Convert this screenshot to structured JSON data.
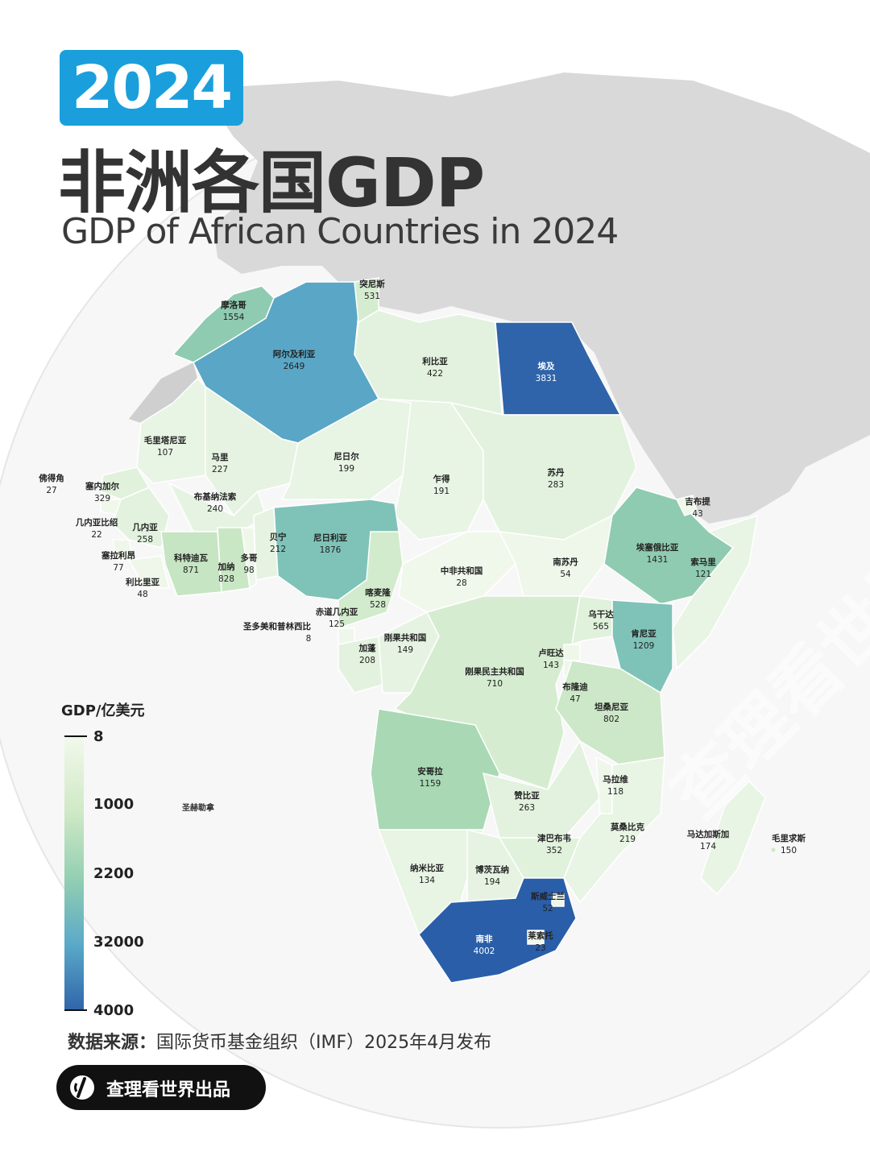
{
  "header": {
    "year": "2024",
    "title_cn": "非洲各国GDP",
    "title_en": "GDP of African Countries in 2024"
  },
  "legend": {
    "title": "GDP/亿美元",
    "ticks": [
      "8",
      "1000",
      "2200",
      "32000",
      "4000"
    ]
  },
  "colors": {
    "year_box": "#1a9fdc",
    "scale_low": "#f2f9ec",
    "scale_mid_low": "#cfe9c6",
    "scale_mid": "#93cfb2",
    "scale_mid_high": "#5aa9c8",
    "scale_high": "#2f64aa"
  },
  "countries": [
    {
      "name": "摩洛哥",
      "value": "1554"
    },
    {
      "name": "阿尔及利亚",
      "value": "2649"
    },
    {
      "name": "突尼斯",
      "value": "531"
    },
    {
      "name": "利比亚",
      "value": "422"
    },
    {
      "name": "埃及",
      "value": "3831"
    },
    {
      "name": "毛里塔尼亚",
      "value": "107"
    },
    {
      "name": "马里",
      "value": "227"
    },
    {
      "name": "尼日尔",
      "value": "199"
    },
    {
      "name": "乍得",
      "value": "191"
    },
    {
      "name": "苏丹",
      "value": "283"
    },
    {
      "name": "佛得角",
      "value": "27"
    },
    {
      "name": "塞内加尔",
      "value": "329"
    },
    {
      "name": "布基纳法索",
      "value": "240"
    },
    {
      "name": "几内亚比绍",
      "value": "22"
    },
    {
      "name": "几内亚",
      "value": "258"
    },
    {
      "name": "塞拉利昂",
      "value": "77"
    },
    {
      "name": "利比里亚",
      "value": "48"
    },
    {
      "name": "科特迪瓦",
      "value": "871"
    },
    {
      "name": "加纳",
      "value": "828"
    },
    {
      "name": "多哥",
      "value": "98"
    },
    {
      "name": "贝宁",
      "value": "212"
    },
    {
      "name": "尼日利亚",
      "value": "1876"
    },
    {
      "name": "喀麦隆",
      "value": "528"
    },
    {
      "name": "中非共和国",
      "value": "28"
    },
    {
      "name": "南苏丹",
      "value": "54"
    },
    {
      "name": "埃塞俄比亚",
      "value": "1431"
    },
    {
      "name": "吉布提",
      "value": "43"
    },
    {
      "name": "索马里",
      "value": "121"
    },
    {
      "name": "赤道几内亚",
      "value": "125"
    },
    {
      "name": "圣多美和普林西比",
      "value": "8"
    },
    {
      "name": "加蓬",
      "value": "208"
    },
    {
      "name": "刚果共和国",
      "value": "149"
    },
    {
      "name": "乌干达",
      "value": "565"
    },
    {
      "name": "肯尼亚",
      "value": "1209"
    },
    {
      "name": "卢旺达",
      "value": "143"
    },
    {
      "name": "布隆迪",
      "value": "47"
    },
    {
      "name": "刚果民主共和国",
      "value": "710"
    },
    {
      "name": "坦桑尼亚",
      "value": "802"
    },
    {
      "name": "安哥拉",
      "value": "1159"
    },
    {
      "name": "赞比亚",
      "value": "263"
    },
    {
      "name": "马拉维",
      "value": "118"
    },
    {
      "name": "莫桑比克",
      "value": "219"
    },
    {
      "name": "马达加斯加",
      "value": "174"
    },
    {
      "name": "毛里求斯",
      "value": "150"
    },
    {
      "name": "津巴布韦",
      "value": "352"
    },
    {
      "name": "纳米比亚",
      "value": "134"
    },
    {
      "name": "博茨瓦纳",
      "value": "194"
    },
    {
      "name": "斯威士兰",
      "value": "52"
    },
    {
      "name": "南非",
      "value": "4002"
    },
    {
      "name": "莱索托",
      "value": "23"
    }
  ],
  "islands": {
    "saint_helena": "圣赫勒拿"
  },
  "source": {
    "label": "数据来源：",
    "text": "国际货币基金组织（IMF）2025年4月发布"
  },
  "brand": {
    "text": "查理看世界出品"
  }
}
